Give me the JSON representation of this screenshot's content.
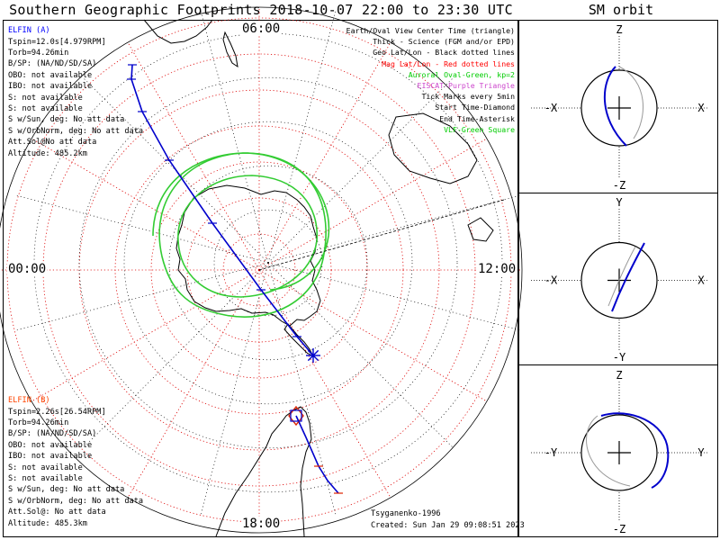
{
  "title": "Southern Geographic Footprints 2018-10-07 22:00 to 23:30 UTC",
  "sm_title": "SM orbit",
  "mlt_labels": {
    "top": "06:00",
    "left": "00:00",
    "right": "12:00",
    "bottom": "18:00"
  },
  "legend": [
    {
      "text": "Earth/Oval View Center Time (triangle)",
      "color": "#000000"
    },
    {
      "text": "Thick - Science (FGM and/or EPD)",
      "color": "#000000"
    },
    {
      "text": "Geo Lat/Lon - Black dotted lines",
      "color": "#000000"
    },
    {
      "text": "Mag Lat/Lon - Red dotted lines",
      "color": "#ff0000"
    },
    {
      "text": "Auroral Oval-Green, kp=2",
      "color": "#00cc00"
    },
    {
      "text": "EISCAT-Purple Triangle",
      "color": "#cc44cc"
    },
    {
      "text": "Tick Marks every 5min",
      "color": "#000000"
    },
    {
      "text": "Start Time-Diamond",
      "color": "#000000"
    },
    {
      "text": "End Time-Asterisk",
      "color": "#000000"
    },
    {
      "text": "VLF-Green Square",
      "color": "#00cc00"
    }
  ],
  "elfin_a": {
    "header": "ELFIN (A)",
    "color": "#0000ff",
    "lines": [
      "Tspin=12.0s[4.979RPM]",
      "Torb=94.26min",
      "B/SP: (NA/ND/SD/SA)",
      "OBO: not available",
      "IBO: not available",
      "S: not available",
      "S: not available",
      "S w/Sun, deg: No att data",
      "S w/OrbNorm, deg: No att data",
      "Att.Sol@No att data",
      "Altitude: 485.2km"
    ]
  },
  "elfin_b": {
    "header": "ELFIN (B)",
    "color": "#ff4400",
    "lines": [
      "Tspin=2.26s[26.54RPM]",
      "Torb=94.26min",
      "B/SP: (NA/ND/SD/SA)",
      "OBO: not available",
      "IBO: not available",
      "S: not available",
      "S: not available",
      "S w/Sun, deg: No att data",
      "S w/OrbNorm, deg: No att data",
      "Att.Sol@: No att data",
      "Altitude: 485.3km"
    ]
  },
  "footer": {
    "model": "Tsyganenko-1996",
    "created": "Created: Sun Jan 29 09:08:51 2023"
  },
  "sm_panels": [
    {
      "top": "Z",
      "bottom": "-Z",
      "left": "-X",
      "right": "X"
    },
    {
      "top": "Y",
      "bottom": "-Y",
      "left": "-X",
      "right": "X"
    },
    {
      "top": "Z",
      "bottom": "-Z",
      "left": "-Y",
      "right": "Y"
    }
  ],
  "colors": {
    "track": "#0000cc",
    "oval": "#33cc33",
    "mag_grid": "#dd0000",
    "geo_grid": "#000000",
    "orbit_gray": "#999999"
  }
}
